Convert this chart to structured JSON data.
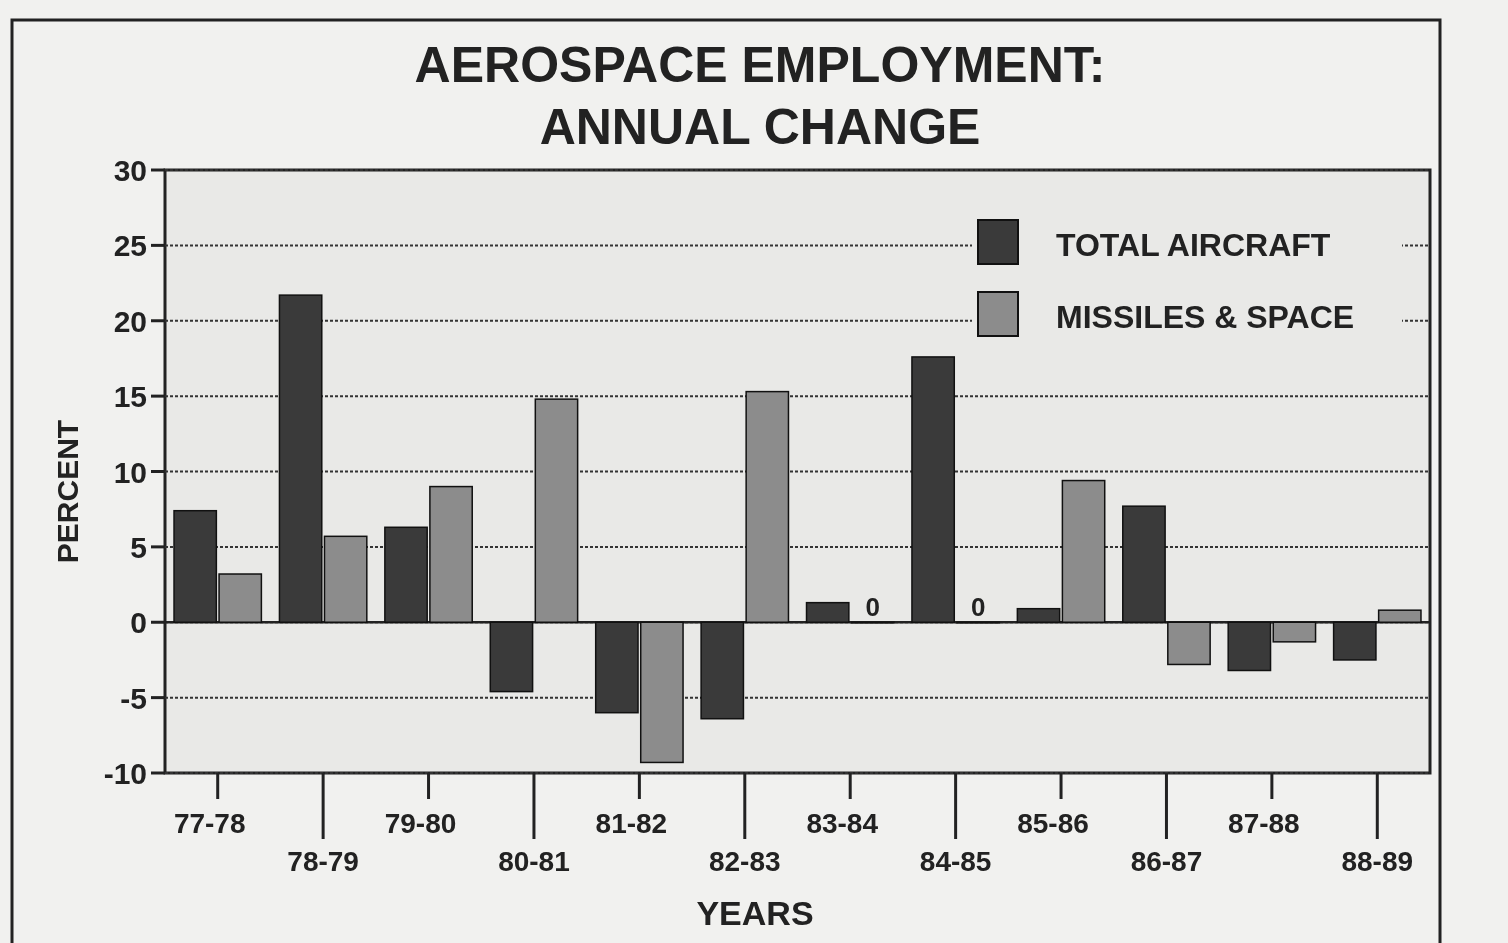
{
  "chart_data": {
    "type": "bar",
    "title": "AEROSPACE EMPLOYMENT:\nANNUAL CHANGE",
    "xlabel": "YEARS",
    "ylabel": "PERCENT",
    "categories": [
      "77-78",
      "78-79",
      "79-80",
      "80-81",
      "81-82",
      "82-83",
      "83-84",
      "84-85",
      "85-86",
      "86-87",
      "87-88",
      "88-89"
    ],
    "series": [
      {
        "name": "TOTAL AIRCRAFT",
        "color": "#3a3a3a",
        "values": [
          7.4,
          21.7,
          6.3,
          -4.6,
          -6.0,
          -6.4,
          1.3,
          17.6,
          0.9,
          7.7,
          -3.2,
          -2.5
        ]
      },
      {
        "name": "MISSILES & SPACE",
        "color": "#8c8c8c",
        "values": [
          3.2,
          5.7,
          9.0,
          14.8,
          -9.3,
          15.3,
          0,
          0,
          9.4,
          -2.8,
          -1.3,
          0.8
        ],
        "value_labels": [
          null,
          null,
          null,
          null,
          null,
          null,
          "0",
          "0",
          null,
          null,
          null,
          null
        ]
      }
    ],
    "ylim": [
      -10,
      30
    ],
    "yticks": [
      -10,
      -5,
      0,
      5,
      10,
      15,
      20,
      25,
      30
    ],
    "grid": "y",
    "legend": "top right"
  }
}
